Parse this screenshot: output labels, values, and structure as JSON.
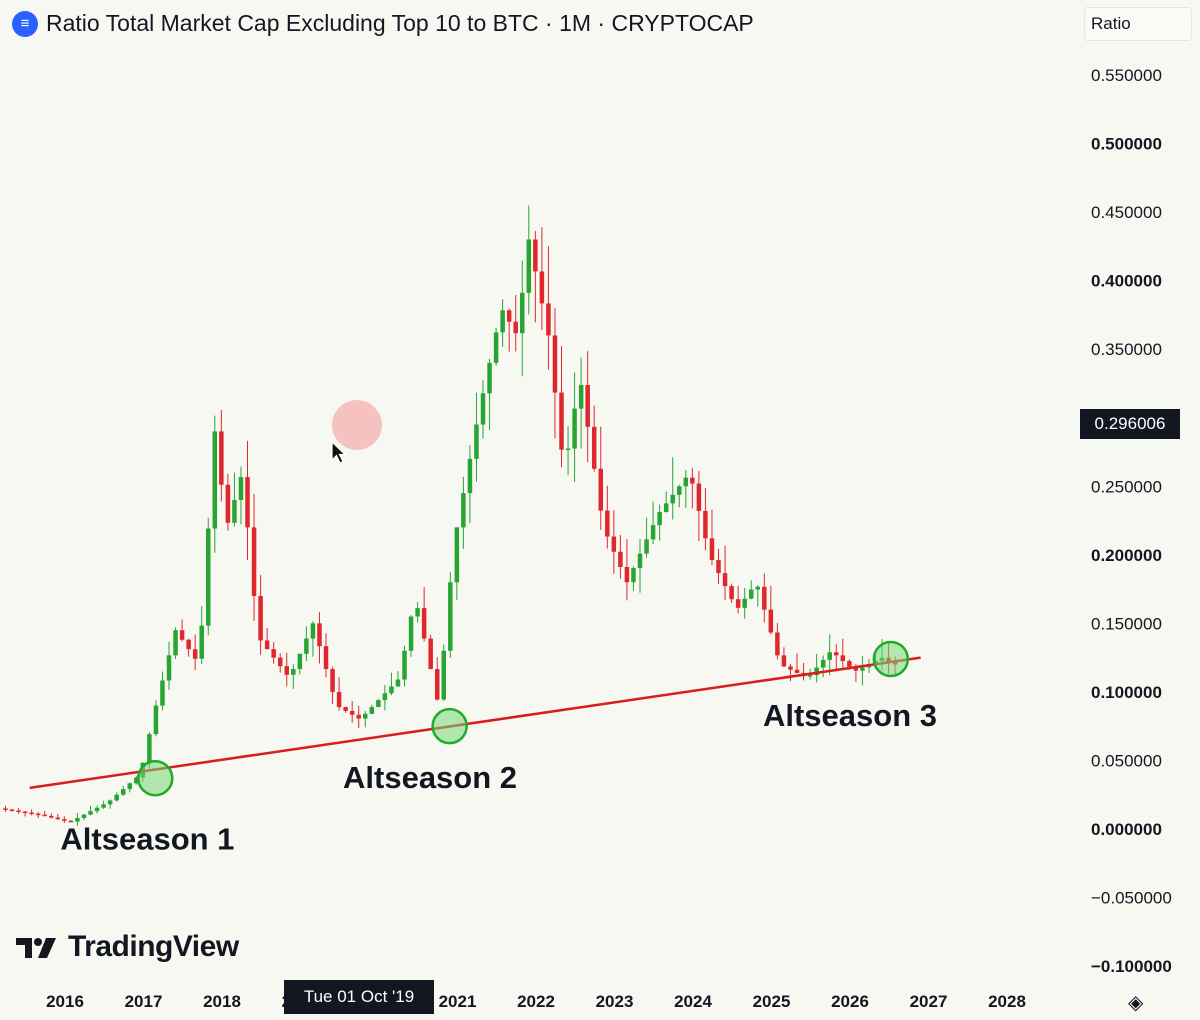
{
  "header": {
    "title": "Ratio Total Market Cap Excluding Top 10 to BTC · 1M · CRYPTOCAP",
    "icon": "cryptocap-icon"
  },
  "scale_mode_label": "Ratio",
  "last_price_label": "0.296006",
  "crosshair_time_label": "Tue 01 Oct '19",
  "logo_text": "TradingView",
  "colors": {
    "up": "#26a532",
    "down": "#e0272d",
    "trendline": "#d91c1c",
    "background": "#f8f8f2"
  },
  "chart_data": {
    "type": "candlestick",
    "interval": "1M",
    "y_axis": {
      "ticks": [
        {
          "value": 0.55,
          "label": "0.550000"
        },
        {
          "value": 0.5,
          "label": "0.500000"
        },
        {
          "value": 0.45,
          "label": "0.450000"
        },
        {
          "value": 0.4,
          "label": "0.400000"
        },
        {
          "value": 0.35,
          "label": "0.350000"
        },
        {
          "value": 0.25,
          "label": "0.250000"
        },
        {
          "value": 0.2,
          "label": "0.200000"
        },
        {
          "value": 0.15,
          "label": "0.150000"
        },
        {
          "value": 0.1,
          "label": "0.100000"
        },
        {
          "value": 0.05,
          "label": "0.050000"
        },
        {
          "value": 0.0,
          "label": "0.000000"
        },
        {
          "value": -0.05,
          "label": "−0.050000"
        },
        {
          "value": -0.1,
          "label": "−0.100000"
        }
      ],
      "ylim": [
        -0.1,
        0.55
      ]
    },
    "x_axis": {
      "ticks": [
        {
          "value": 2016,
          "label": "2016"
        },
        {
          "value": 2017,
          "label": "2017"
        },
        {
          "value": 2018,
          "label": "2018"
        },
        {
          "value": 2019,
          "label": "2019"
        },
        {
          "value": 2021,
          "label": "2021"
        },
        {
          "value": 2022,
          "label": "2022"
        },
        {
          "value": 2023,
          "label": "2023"
        },
        {
          "value": 2024,
          "label": "2024"
        },
        {
          "value": 2025,
          "label": "2025"
        },
        {
          "value": 2026,
          "label": "2026"
        },
        {
          "value": 2027,
          "label": "2027"
        },
        {
          "value": 2028,
          "label": "2028"
        }
      ]
    },
    "anchors": [
      {
        "x": 2015.2,
        "y": 0.015
      },
      {
        "x": 2015.75,
        "y": 0.01
      },
      {
        "x": 2016.1,
        "y": 0.005
      },
      {
        "x": 2016.6,
        "y": 0.02
      },
      {
        "x": 2017.0,
        "y": 0.04
      },
      {
        "x": 2017.2,
        "y": 0.09
      },
      {
        "x": 2017.45,
        "y": 0.145
      },
      {
        "x": 2017.75,
        "y": 0.12
      },
      {
        "x": 2017.95,
        "y": 0.29
      },
      {
        "x": 2018.1,
        "y": 0.22
      },
      {
        "x": 2018.3,
        "y": 0.26
      },
      {
        "x": 2018.5,
        "y": 0.14
      },
      {
        "x": 2018.9,
        "y": 0.11
      },
      {
        "x": 2019.2,
        "y": 0.15
      },
      {
        "x": 2019.5,
        "y": 0.09
      },
      {
        "x": 2019.8,
        "y": 0.08
      },
      {
        "x": 2020.3,
        "y": 0.11
      },
      {
        "x": 2020.5,
        "y": 0.17
      },
      {
        "x": 2020.8,
        "y": 0.09
      },
      {
        "x": 2021.0,
        "y": 0.21
      },
      {
        "x": 2021.3,
        "y": 0.3
      },
      {
        "x": 2021.6,
        "y": 0.38
      },
      {
        "x": 2021.8,
        "y": 0.36
      },
      {
        "x": 2021.95,
        "y": 0.43
      },
      {
        "x": 2022.2,
        "y": 0.36
      },
      {
        "x": 2022.4,
        "y": 0.26
      },
      {
        "x": 2022.6,
        "y": 0.33
      },
      {
        "x": 2022.9,
        "y": 0.22
      },
      {
        "x": 2023.2,
        "y": 0.18
      },
      {
        "x": 2023.6,
        "y": 0.23
      },
      {
        "x": 2024.0,
        "y": 0.26
      },
      {
        "x": 2024.25,
        "y": 0.2
      },
      {
        "x": 2024.6,
        "y": 0.16
      },
      {
        "x": 2024.85,
        "y": 0.18
      },
      {
        "x": 2025.15,
        "y": 0.12
      },
      {
        "x": 2025.5,
        "y": 0.11
      },
      {
        "x": 2025.8,
        "y": 0.13
      },
      {
        "x": 2026.1,
        "y": 0.115
      },
      {
        "x": 2026.45,
        "y": 0.125
      },
      {
        "x": 2026.58,
        "y": 0.12
      }
    ],
    "trendline": {
      "from": {
        "x": 2015.55,
        "y": 0.03
      },
      "to": {
        "x": 2026.9,
        "y": 0.125
      }
    },
    "highlight_circles": [
      {
        "x": 2017.15,
        "y": 0.037
      },
      {
        "x": 2020.9,
        "y": 0.075
      },
      {
        "x": 2026.52,
        "y": 0.124
      }
    ],
    "annotations": [
      {
        "text": "Altseason 1",
        "x": 2017.05,
        "y": -0.015
      },
      {
        "text": "Altseason 2",
        "x": 2020.65,
        "y": 0.03
      },
      {
        "text": "Altseason 3",
        "x": 2026.0,
        "y": 0.075
      }
    ]
  }
}
